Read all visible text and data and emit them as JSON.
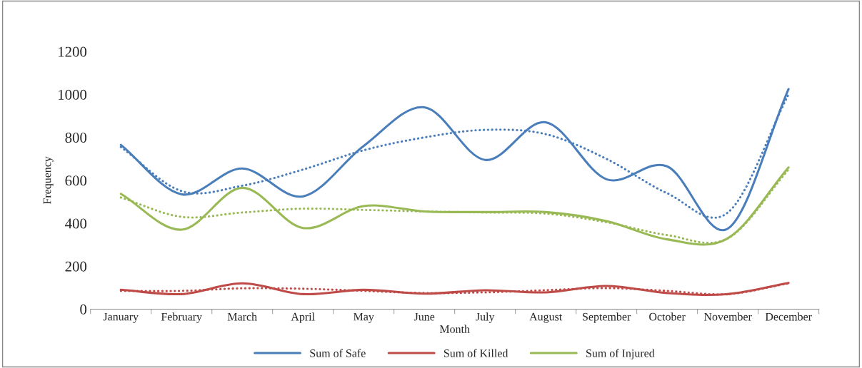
{
  "chart_data": {
    "type": "line",
    "xlabel": "Month",
    "ylabel": "Frequency",
    "categories": [
      "January",
      "February",
      "March",
      "April",
      "May",
      "June",
      "July",
      "August",
      "September",
      "October",
      "November",
      "December"
    ],
    "ylim": [
      0,
      1200
    ],
    "yticks": [
      0,
      200,
      400,
      600,
      800,
      1000,
      1200
    ],
    "grid": false,
    "legend": "bottom",
    "marker": "none",
    "series": [
      {
        "name": "Sum of Safe",
        "color": "#4a7ebb",
        "line_style": "solid",
        "values": [
          765,
          535,
          655,
          525,
          760,
          940,
          695,
          870,
          605,
          665,
          375,
          1025
        ]
      },
      {
        "name": "Sum of Killed",
        "color": "#be4b48",
        "line_style": "solid",
        "values": [
          90,
          70,
          120,
          70,
          90,
          72,
          88,
          78,
          108,
          75,
          70,
          122
        ]
      },
      {
        "name": "Sum of Injured",
        "color": "#98b954",
        "line_style": "solid",
        "values": [
          537,
          370,
          565,
          378,
          480,
          455,
          452,
          452,
          410,
          325,
          330,
          660
        ]
      },
      {
        "color": "#4a7ebb",
        "line_style": "dotted",
        "values": [
          755,
          550,
          575,
          650,
          740,
          800,
          835,
          815,
          700,
          540,
          450,
          1000
        ]
      },
      {
        "color": "#be4b48",
        "line_style": "dotted",
        "values": [
          85,
          85,
          97,
          95,
          85,
          75,
          78,
          88,
          98,
          85,
          70,
          120
        ]
      },
      {
        "color": "#98b954",
        "line_style": "dotted",
        "values": [
          520,
          430,
          450,
          468,
          462,
          455,
          450,
          445,
          405,
          345,
          330,
          650
        ]
      }
    ]
  }
}
